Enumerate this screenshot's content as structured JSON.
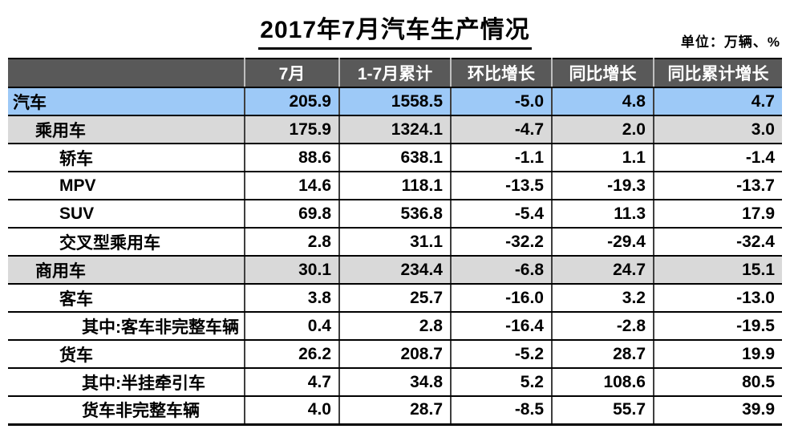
{
  "chart_data": {
    "type": "table",
    "title": "2017年7月汽车生产情况",
    "unit_note": "单位：万辆、%",
    "columns": [
      "",
      "7月",
      "1-7月累计",
      "环比增长",
      "同比增长",
      "同比累计增长"
    ],
    "rows": [
      {
        "label": "汽车",
        "indent": 0,
        "style": "blue",
        "values": [
          "205.9",
          "1558.5",
          "-5.0",
          "4.8",
          "4.7"
        ]
      },
      {
        "label": "乘用车",
        "indent": 1,
        "style": "gray",
        "values": [
          "175.9",
          "1324.1",
          "-4.7",
          "2.0",
          "3.0"
        ]
      },
      {
        "label": "轿车",
        "indent": 2,
        "style": "white",
        "values": [
          "88.6",
          "638.1",
          "-1.1",
          "1.1",
          "-1.4"
        ]
      },
      {
        "label": "MPV",
        "indent": 2,
        "style": "white",
        "values": [
          "14.6",
          "118.1",
          "-13.5",
          "-19.3",
          "-13.7"
        ]
      },
      {
        "label": "SUV",
        "indent": 2,
        "style": "white",
        "values": [
          "69.8",
          "536.8",
          "-5.4",
          "11.3",
          "17.9"
        ]
      },
      {
        "label": "交叉型乘用车",
        "indent": 2,
        "style": "white",
        "values": [
          "2.8",
          "31.1",
          "-32.2",
          "-29.4",
          "-32.4"
        ]
      },
      {
        "label": "商用车",
        "indent": 1,
        "style": "gray",
        "values": [
          "30.1",
          "234.4",
          "-6.8",
          "24.7",
          "15.1"
        ]
      },
      {
        "label": "客车",
        "indent": 2,
        "style": "white",
        "values": [
          "3.8",
          "25.7",
          "-16.0",
          "3.2",
          "-13.0"
        ]
      },
      {
        "label": "其中:客车非完整车辆",
        "indent": 3,
        "style": "white",
        "values": [
          "0.4",
          "2.8",
          "-16.4",
          "-2.8",
          "-19.5"
        ]
      },
      {
        "label": "货车",
        "indent": 2,
        "style": "white",
        "values": [
          "26.2",
          "208.7",
          "-5.2",
          "28.7",
          "19.9"
        ]
      },
      {
        "label": "其中:半挂牵引车",
        "indent": 3,
        "style": "white",
        "values": [
          "4.7",
          "34.8",
          "5.2",
          "108.6",
          "80.5"
        ]
      },
      {
        "label": "货车非完整车辆",
        "indent": 3,
        "style": "white",
        "values": [
          "4.0",
          "28.7",
          "-8.5",
          "55.7",
          "39.9"
        ]
      }
    ]
  },
  "colors": {
    "header_bg": "#595959",
    "header_text": "#ffffff",
    "row_highlight_blue": "#9dc9f7",
    "row_highlight_gray": "#d9d9d9",
    "border_black": "#000000"
  }
}
